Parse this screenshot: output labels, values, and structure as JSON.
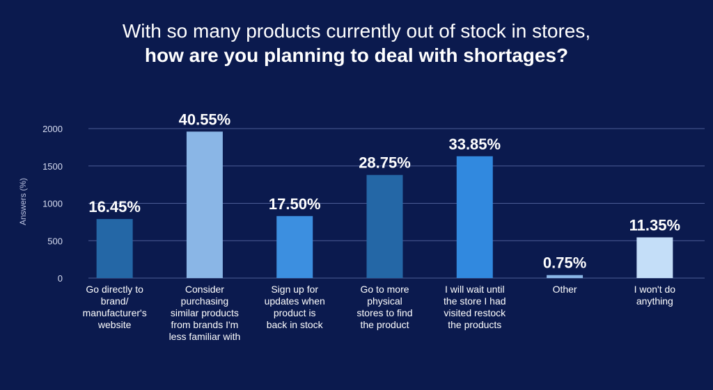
{
  "chart_data": {
    "type": "bar",
    "title_line1": "With so many products currently out of stock in stores,",
    "title_line2": "how are you planning to deal with shortages?",
    "ylabel": "Answers (%)",
    "ylim": [
      0,
      2000
    ],
    "yticks": [
      "0",
      "500",
      "1000",
      "1500",
      "2000"
    ],
    "ytick_values": [
      0,
      500,
      1000,
      1500,
      2000
    ],
    "grid": true,
    "categories": [
      [
        "Go directly to",
        "brand/",
        "manufacturer's",
        "website"
      ],
      [
        "Consider",
        "purchasing",
        "similar products",
        "from brands I'm",
        "less familiar with"
      ],
      [
        "Sign up for",
        "updates when",
        "product is",
        "back in stock"
      ],
      [
        "Go to more",
        "physical",
        "stores to find",
        "the product"
      ],
      [
        "I will wait until",
        "the store I had",
        "visited restock",
        "the products"
      ],
      [
        "Other"
      ],
      [
        "I won't do",
        "anything"
      ]
    ],
    "values": [
      790,
      1960,
      830,
      1380,
      1630,
      40,
      545
    ],
    "data_labels": [
      "16.45%",
      "40.55%",
      "17.50%",
      "28.75%",
      "33.85%",
      "0.75%",
      "11.35%"
    ],
    "colors": [
      "#2467a6",
      "#8ab6e6",
      "#3c8fe0",
      "#2467a6",
      "#3189df",
      "#8ab6e6",
      "#c4def8"
    ]
  }
}
